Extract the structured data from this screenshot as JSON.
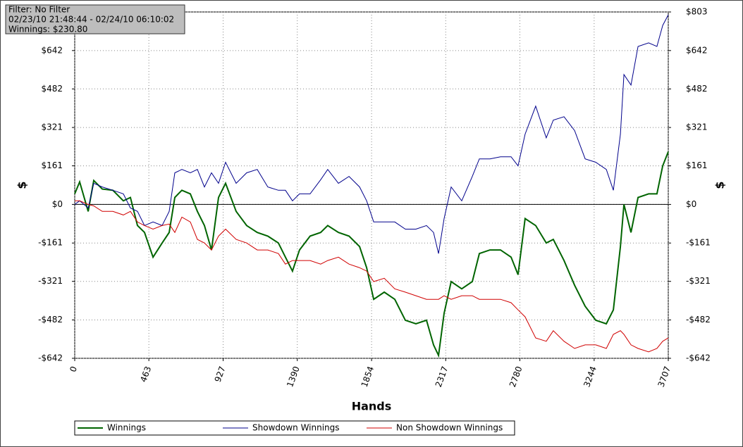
{
  "chart_data": {
    "type": "line",
    "info": [
      "Filter: No Filter",
      "02/23/10 21:48:44 - 02/24/10 06:10:02",
      "Winnings: $230.80"
    ],
    "xlabel": "Hands",
    "ylabel": "$",
    "y2label": "$",
    "x": [
      0,
      31,
      84,
      119,
      172,
      238,
      304,
      348,
      392,
      436,
      489,
      546,
      590,
      625,
      669,
      722,
      766,
      810,
      854,
      898,
      942,
      1008,
      1074,
      1140,
      1206,
      1272,
      1316,
      1360,
      1404,
      1470,
      1536,
      1580,
      1647,
      1713,
      1779,
      1823,
      1867,
      1933,
      1999,
      2065,
      2131,
      2197,
      2241,
      2272,
      2307,
      2351,
      2417,
      2483,
      2527,
      2593,
      2659,
      2725,
      2769,
      2813,
      2879,
      2945,
      2989,
      3056,
      3122,
      3188,
      3254,
      3320,
      3364,
      3408,
      3430,
      3474,
      3518,
      3584,
      3636,
      3672,
      3707
    ],
    "series": [
      {
        "name": "Winnings",
        "color": "#006400",
        "values": [
          44,
          94,
          -29,
          100,
          64,
          59,
          15,
          29,
          -88,
          -117,
          -220,
          -161,
          -117,
          29,
          59,
          44,
          -29,
          -88,
          -190,
          29,
          88,
          -29,
          -88,
          -117,
          -132,
          -161,
          -220,
          -278,
          -190,
          -132,
          -117,
          -88,
          -117,
          -132,
          -176,
          -264,
          -396,
          -366,
          -396,
          -483,
          -498,
          -483,
          -586,
          -630,
          -454,
          -322,
          -352,
          -322,
          -205,
          -190,
          -190,
          -220,
          -293,
          -59,
          -88,
          -161,
          -146,
          -234,
          -337,
          -425,
          -483,
          -498,
          -440,
          -176,
          0,
          -117,
          29,
          44,
          44,
          161,
          220
        ]
      },
      {
        "name": "Showdown Winnings",
        "color": "#00008b",
        "values": [
          0,
          15,
          -15,
          88,
          73,
          59,
          44,
          -15,
          -29,
          -88,
          -73,
          -88,
          -29,
          132,
          146,
          132,
          146,
          73,
          132,
          88,
          176,
          88,
          132,
          146,
          73,
          59,
          59,
          15,
          44,
          44,
          103,
          146,
          88,
          117,
          73,
          15,
          -73,
          -73,
          -73,
          -103,
          -103,
          -88,
          -117,
          -205,
          -59,
          73,
          15,
          117,
          190,
          190,
          199,
          199,
          161,
          293,
          410,
          278,
          352,
          366,
          308,
          190,
          176,
          146,
          59,
          293,
          542,
          498,
          659,
          674,
          659,
          747,
          791
        ]
      },
      {
        "name": "Non Showdown Winnings",
        "color": "#d00000",
        "values": [
          15,
          15,
          0,
          -6,
          -29,
          -29,
          -44,
          -29,
          -73,
          -88,
          -103,
          -88,
          -82,
          -117,
          -53,
          -73,
          -146,
          -161,
          -190,
          -132,
          -103,
          -146,
          -161,
          -190,
          -190,
          -205,
          -249,
          -234,
          -234,
          -234,
          -249,
          -234,
          -220,
          -249,
          -264,
          -278,
          -322,
          -308,
          -352,
          -366,
          -381,
          -396,
          -396,
          -396,
          -381,
          -396,
          -381,
          -381,
          -396,
          -396,
          -396,
          -410,
          -440,
          -469,
          -557,
          -571,
          -527,
          -571,
          -601,
          -586,
          -586,
          -601,
          -542,
          -527,
          -542,
          -586,
          -601,
          -615,
          -601,
          -571,
          -557
        ]
      }
    ],
    "xlim": [
      0,
      3707
    ],
    "xticks": [
      0,
      463,
      927,
      1390,
      1854,
      2317,
      2780,
      3244,
      3707
    ],
    "ylim": [
      -642,
      803
    ],
    "yticks": [
      {
        "value": -642,
        "label": "-$642"
      },
      {
        "value": -482,
        "label": "-$482"
      },
      {
        "value": -321,
        "label": "-$321"
      },
      {
        "value": -161,
        "label": "-$161"
      },
      {
        "value": 0,
        "label": "$0"
      },
      {
        "value": 161,
        "label": "$161"
      },
      {
        "value": 321,
        "label": "$321"
      },
      {
        "value": 482,
        "label": "$482"
      },
      {
        "value": 642,
        "label": "$642"
      },
      {
        "value": 803,
        "label": "$803"
      }
    ],
    "grid": true
  }
}
